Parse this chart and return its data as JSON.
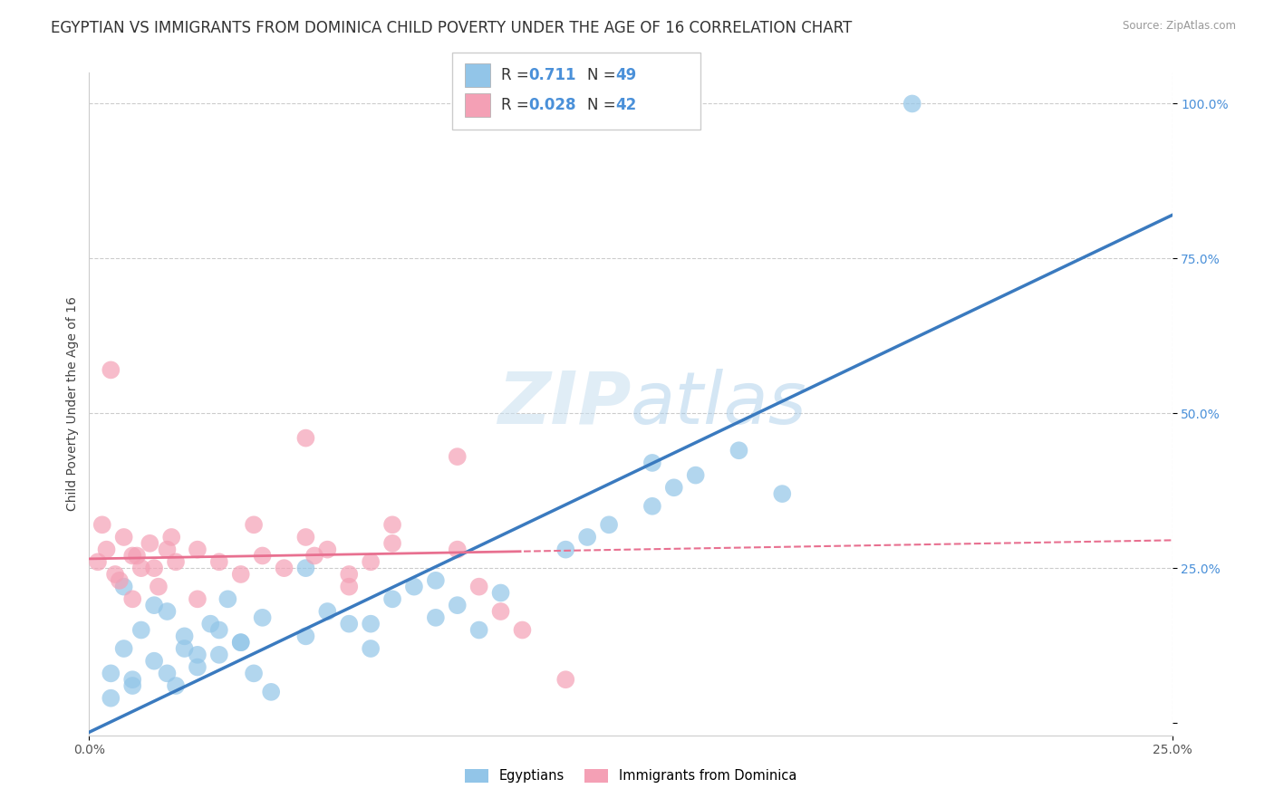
{
  "title": "EGYPTIAN VS IMMIGRANTS FROM DOMINICA CHILD POVERTY UNDER THE AGE OF 16 CORRELATION CHART",
  "source": "Source: ZipAtlas.com",
  "ylabel": "Child Poverty Under the Age of 16",
  "xlim": [
    0.0,
    0.25
  ],
  "ylim": [
    -0.02,
    1.05
  ],
  "xtick_labels": [
    "0.0%",
    "25.0%"
  ],
  "ytick_labels": [
    "",
    "25.0%",
    "50.0%",
    "75.0%",
    "100.0%"
  ],
  "watermark_zip": "ZIP",
  "watermark_atlas": "atlas",
  "legend_label1": "Egyptians",
  "legend_label2": "Immigrants from Dominica",
  "blue_color": "#92c5e8",
  "pink_color": "#f4a0b5",
  "blue_line_color": "#3a7abf",
  "pink_line_color": "#e87090",
  "background_color": "#ffffff",
  "grid_color": "#cccccc",
  "title_fontsize": 12,
  "axis_label_fontsize": 10,
  "tick_fontsize": 10,
  "accent_color": "#4a90d9"
}
